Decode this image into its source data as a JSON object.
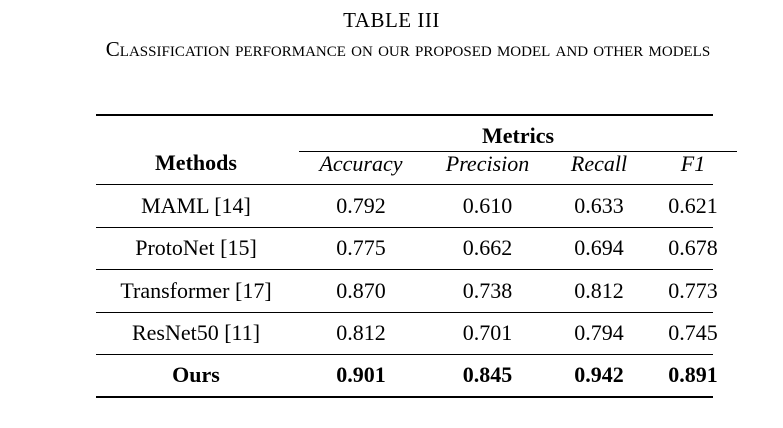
{
  "caption": {
    "number": "TABLE III",
    "title": "Classification performance on our proposed model and other models"
  },
  "table": {
    "methods_header": "Methods",
    "metrics_header": "Metrics",
    "columns": [
      "Accuracy",
      "Precision",
      "Recall",
      "F1"
    ],
    "rows": [
      {
        "method": "MAML [14]",
        "values": [
          "0.792",
          "0.610",
          "0.633",
          "0.621"
        ]
      },
      {
        "method": "ProtoNet [15]",
        "values": [
          "0.775",
          "0.662",
          "0.694",
          "0.678"
        ]
      },
      {
        "method": "Transformer [17]",
        "values": [
          "0.870",
          "0.738",
          "0.812",
          "0.773"
        ]
      },
      {
        "method": "ResNet50 [11]",
        "values": [
          "0.812",
          "0.701",
          "0.794",
          "0.745"
        ]
      },
      {
        "method": "Ours",
        "values": [
          "0.901",
          "0.845",
          "0.942",
          "0.891"
        ]
      }
    ]
  }
}
